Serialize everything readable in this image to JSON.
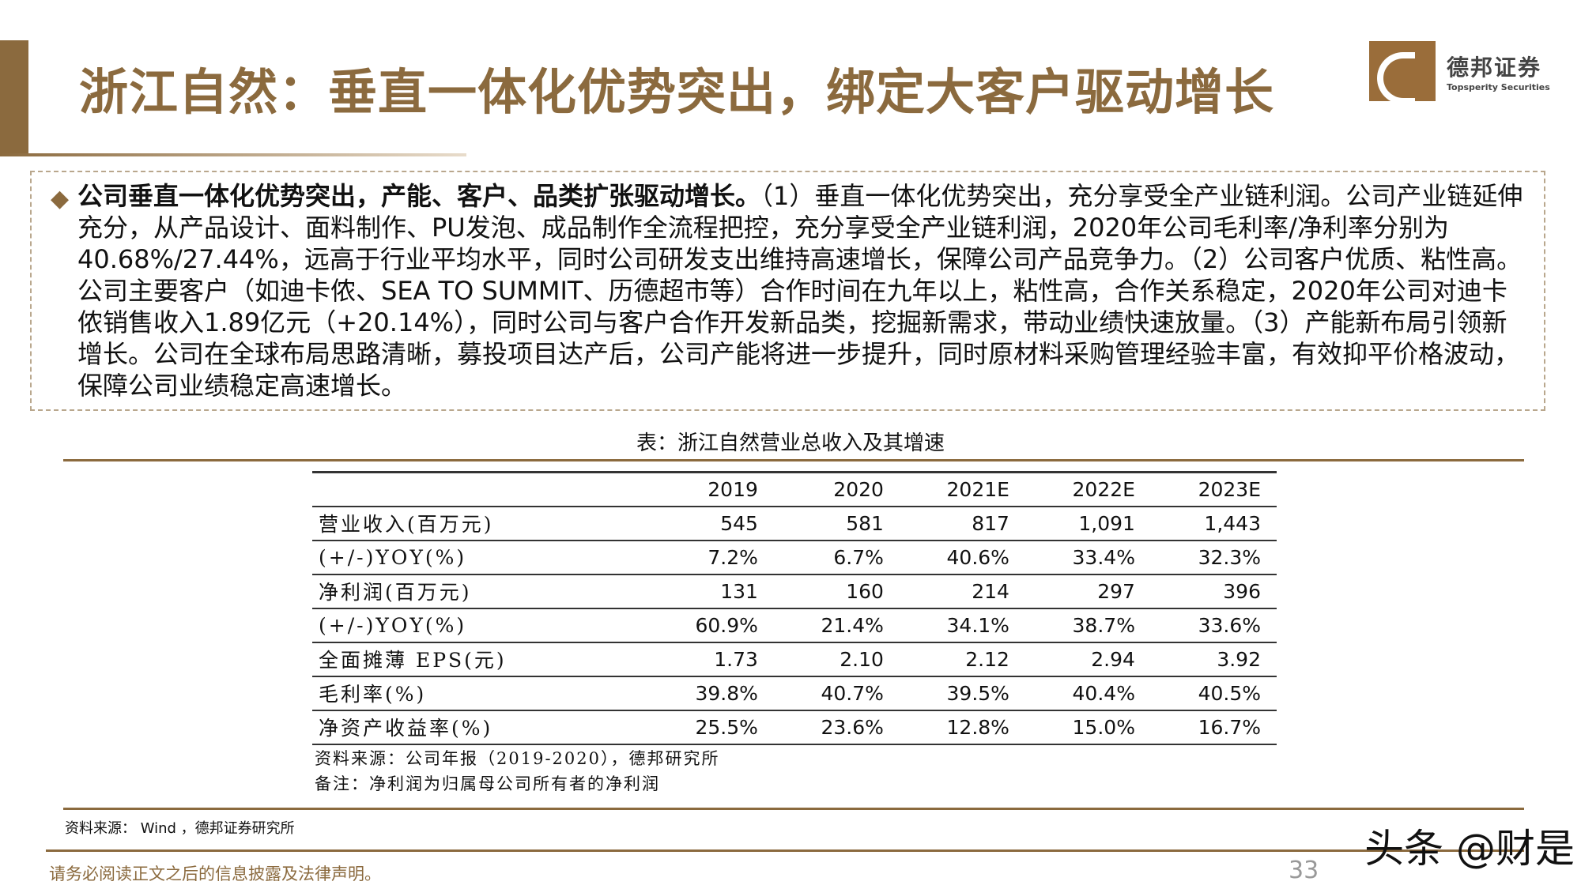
{
  "title": "浙江自然：垂直一体化优势突出，绑定大客户驱动增长",
  "logo": {
    "cn": "德邦证券",
    "en": "Topsperity Securities"
  },
  "summary": {
    "bold": "公司垂直一体化优势突出，产能、客户、品类扩张驱动增长。",
    "text": "（1）垂直一体化优势突出，充分享受全产业链利润。公司产业链延伸充分，从产品设计、面料制作、PU发泡、成品制作全流程把控，充分享受全产业链利润，2020年公司毛利率/净利率分别为40.68%/27.44%，远高于行业平均水平，同时公司研发支出维持高速增长，保障公司产品竞争力。（2）公司客户优质、粘性高。公司主要客户（如迪卡侬、SEA TO SUMMIT、历德超市等）合作时间在九年以上，粘性高，合作关系稳定，2020年公司对迪卡侬销售收入1.89亿元（+20.14%），同时公司与客户合作开发新品类，挖掘新需求，带动业绩快速放量。（3）产能新布局引领新增长。公司在全球布局思路清晰，募投项目达产后，公司产能将进一步提升，同时原材料采购管理经验丰富，有效抑平价格波动，保障公司业绩稳定高速增长。"
  },
  "table": {
    "caption": "表：浙江自然营业总收入及其增速",
    "headers": [
      "",
      "2019",
      "2020",
      "2021E",
      "2022E",
      "2023E"
    ],
    "rows": [
      [
        "营业收入(百万元)",
        "545",
        "581",
        "817",
        "1,091",
        "1,443"
      ],
      [
        "(+/-)YOY(%)",
        "7.2%",
        "6.7%",
        "40.6%",
        "33.4%",
        "32.3%"
      ],
      [
        "净利润(百万元)",
        "131",
        "160",
        "214",
        "297",
        "396"
      ],
      [
        "(+/-)YOY(%)",
        "60.9%",
        "21.4%",
        "34.1%",
        "38.7%",
        "33.6%"
      ],
      [
        "全面摊薄 EPS(元)",
        "1.73",
        "2.10",
        "2.12",
        "2.94",
        "3.92"
      ],
      [
        "毛利率(%)",
        "39.8%",
        "40.7%",
        "39.5%",
        "40.4%",
        "40.5%"
      ],
      [
        "净资产收益率(%)",
        "25.5%",
        "23.6%",
        "12.8%",
        "15.0%",
        "16.7%"
      ]
    ],
    "source": "资料来源：公司年报（2019-2020），德邦研究所",
    "note": "备注：净利润为归属母公司所有者的净利润"
  },
  "footer": {
    "source": "资料来源： Wind ，德邦证券研究所",
    "disclaimer": "请务必阅读正文之后的信息披露及法律声明。",
    "page": "33",
    "watermark": "头条 @财是"
  }
}
